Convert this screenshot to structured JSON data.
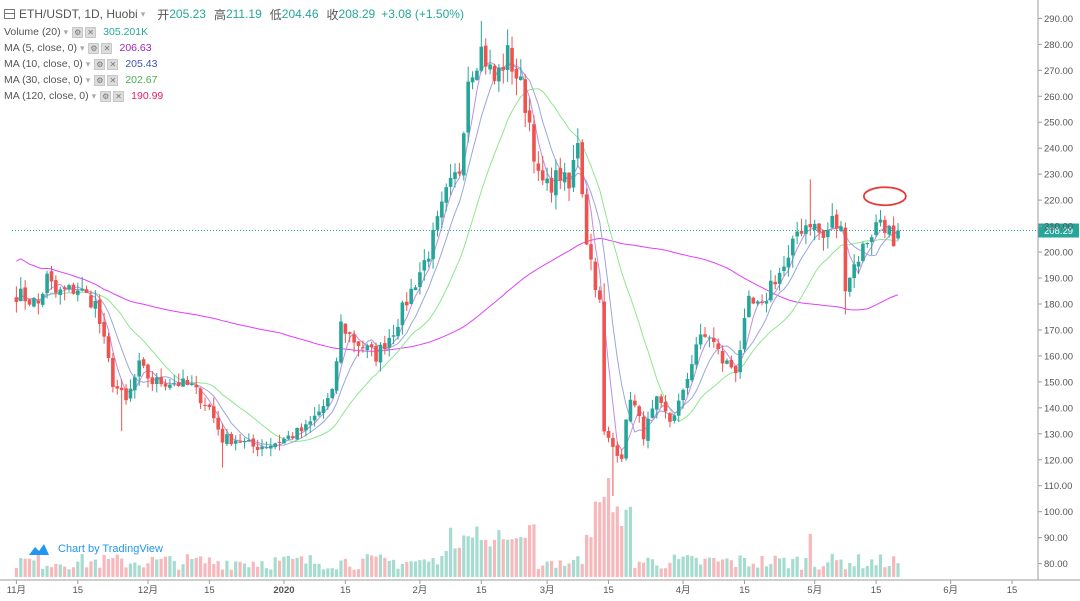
{
  "legend": {
    "symbol": "ETH/USDT, 1D, Huobi",
    "open_label": "开",
    "open": "205.23",
    "high_label": "高",
    "high": "211.19",
    "low_label": "低",
    "low": "204.46",
    "close_label": "收",
    "close": "208.29",
    "change": "+3.08 (+1.50%)",
    "indicators": [
      {
        "label": "Volume (20)",
        "value": "305.201K",
        "color": "#26a69a"
      },
      {
        "label": "MA (5, close, 0)",
        "value": "206.63",
        "color": "#9c27b0"
      },
      {
        "label": "MA (10, close, 0)",
        "value": "205.43",
        "color": "#3f51b5"
      },
      {
        "label": "MA (30, close, 0)",
        "value": "202.67",
        "color": "#4caf50"
      },
      {
        "label": "MA (120, close, 0)",
        "value": "190.99",
        "color": "#e91e63"
      }
    ]
  },
  "branding": {
    "text": "Chart by TradingView"
  },
  "chart_data": {
    "type": "candlestick",
    "y_ticks": [
      80,
      90,
      100,
      110,
      120,
      130,
      140,
      150,
      160,
      170,
      180,
      190,
      200,
      210,
      220,
      230,
      240,
      250,
      260,
      270,
      280,
      290
    ],
    "y_tick_labels": [
      "80.00",
      "90.00",
      "100.00",
      "110.00",
      "120.00",
      "130.00",
      "140.00",
      "150.00",
      "160.00",
      "170.00",
      "180.00",
      "190.00",
      "200.00",
      "210.00",
      "220.00",
      "230.00",
      "240.00",
      "250.00",
      "260.00",
      "270.00",
      "280.00",
      "290.00"
    ],
    "ylim": [
      76,
      294
    ],
    "last_price_label": "208.29",
    "last_price": 208.29,
    "x_ticks": [
      {
        "label": "11月",
        "day": 0
      },
      {
        "label": "15",
        "day": 14
      },
      {
        "label": "12月",
        "day": 30
      },
      {
        "label": "15",
        "day": 44
      },
      {
        "label": "2020",
        "day": 61
      },
      {
        "label": "15",
        "day": 75
      },
      {
        "label": "2月",
        "day": 92
      },
      {
        "label": "15",
        "day": 106
      },
      {
        "label": "3月",
        "day": 121
      },
      {
        "label": "15",
        "day": 135
      },
      {
        "label": "4月",
        "day": 152
      },
      {
        "label": "15",
        "day": 166
      },
      {
        "label": "5月",
        "day": 182
      },
      {
        "label": "15",
        "day": 196
      },
      {
        "label": "6月",
        "day": 213
      },
      {
        "label": "15",
        "day": 227
      }
    ],
    "x_range_days": [
      -1,
      232
    ],
    "anchors": [
      [
        0,
        184
      ],
      [
        5,
        180
      ],
      [
        7,
        190
      ],
      [
        9,
        184
      ],
      [
        14,
        186
      ],
      [
        18,
        180
      ],
      [
        22,
        150
      ],
      [
        25,
        142
      ],
      [
        28,
        156
      ],
      [
        31,
        150
      ],
      [
        36,
        150
      ],
      [
        40,
        148
      ],
      [
        44,
        140
      ],
      [
        47,
        128
      ],
      [
        50,
        128
      ],
      [
        54,
        125
      ],
      [
        58,
        126
      ],
      [
        61,
        128
      ],
      [
        66,
        132
      ],
      [
        72,
        145
      ],
      [
        74,
        172
      ],
      [
        77,
        166
      ],
      [
        82,
        160
      ],
      [
        86,
        170
      ],
      [
        90,
        185
      ],
      [
        94,
        200
      ],
      [
        98,
        222
      ],
      [
        101,
        232
      ],
      [
        103,
        268
      ],
      [
        106,
        278
      ],
      [
        109,
        266
      ],
      [
        112,
        276
      ],
      [
        115,
        264
      ],
      [
        117,
        250
      ],
      [
        119,
        228
      ],
      [
        121,
        225
      ],
      [
        124,
        230
      ],
      [
        126,
        224
      ],
      [
        128,
        244
      ],
      [
        130,
        205
      ],
      [
        133,
        180
      ],
      [
        134,
        130
      ],
      [
        136,
        125
      ],
      [
        138,
        122
      ],
      [
        140,
        145
      ],
      [
        143,
        130
      ],
      [
        146,
        142
      ],
      [
        149,
        135
      ],
      [
        152,
        145
      ],
      [
        155,
        165
      ],
      [
        158,
        168
      ],
      [
        161,
        158
      ],
      [
        164,
        155
      ],
      [
        167,
        180
      ],
      [
        170,
        178
      ],
      [
        172,
        188
      ],
      [
        176,
        196
      ],
      [
        178,
        208
      ],
      [
        181,
        212
      ],
      [
        184,
        205
      ],
      [
        186,
        212
      ],
      [
        188,
        208
      ],
      [
        189,
        188
      ],
      [
        191,
        195
      ],
      [
        194,
        205
      ],
      [
        197,
        213
      ],
      [
        199,
        208
      ],
      [
        200,
        200
      ],
      [
        201,
        208.29
      ]
    ],
    "ma_levels": [
      {
        "name": "MA (120, close, 0)",
        "value": 190.99
      },
      {
        "name": "MA (30, close, 0)",
        "value": 202.67
      },
      {
        "name": "MA (10, close, 0)",
        "value": 205.43
      },
      {
        "name": "MA (5, close, 0)",
        "value": 206.63
      }
    ],
    "highlight_ellipse_price": 221.5,
    "highlight_ellipse_day": 198
  }
}
